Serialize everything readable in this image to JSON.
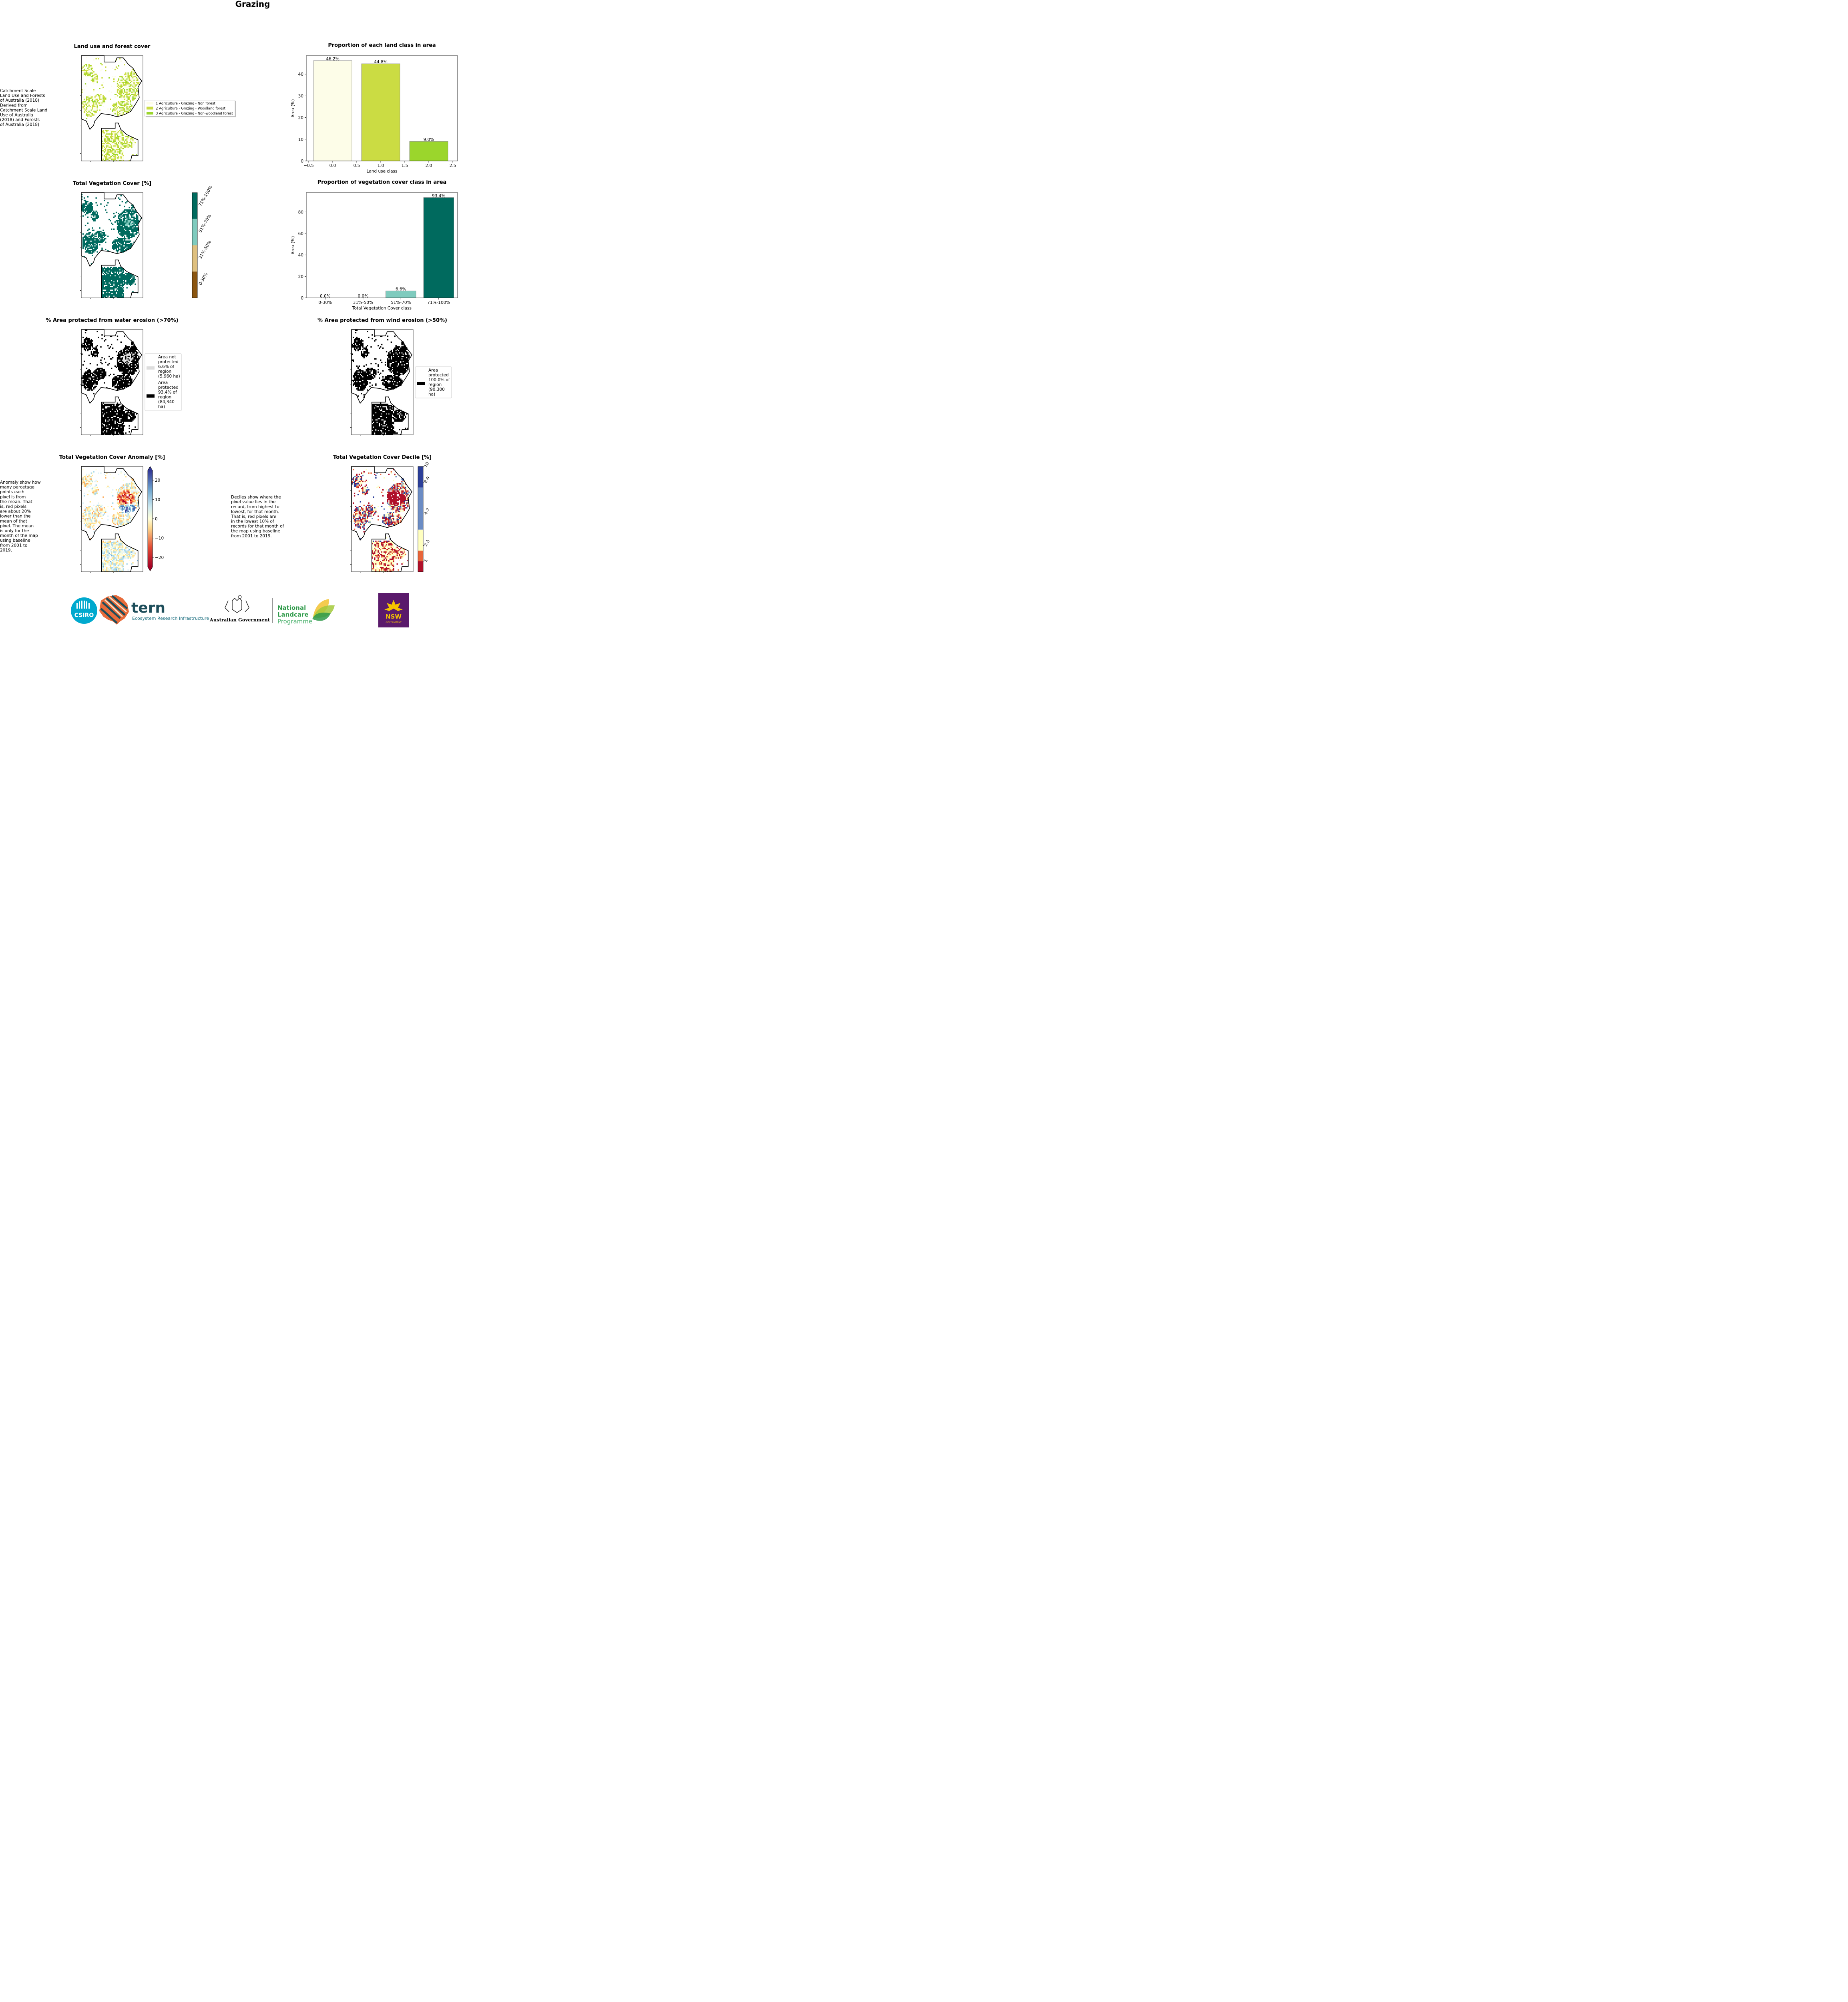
{
  "page": {
    "title": "Grazing"
  },
  "landuse_map": {
    "title": "Land use and forest cover",
    "note": [
      " Catchment Scale",
      "Land Use and Forests",
      "of Australia (2018)",
      "Derived from",
      "Catchment Scale Land",
      "Use of Australia",
      "(2018) and Forests",
      "of Australia (2018)"
    ],
    "legend": [
      {
        "label": "1 Agriculture - Grazing - Non forest",
        "color": "#fdfde8"
      },
      {
        "label": "2 Agriculture - Grazing - Woodland forest",
        "color": "#cbdc43"
      },
      {
        "label": "3 Agriculture - Grazing - Non-woodland forest",
        "color": "#9bd62c"
      }
    ]
  },
  "veg_map": {
    "title": "Total Vegetation Cover [%]",
    "classes": [
      {
        "label": "71%-100%",
        "color": "#006a5e"
      },
      {
        "label": "51%-70%",
        "color": "#7fcbbe"
      },
      {
        "label": "31%-50%",
        "color": "#dfc07f"
      },
      {
        "label": "0-30%",
        "color": "#8a5510"
      }
    ]
  },
  "water_map": {
    "title": "% Area protected from water erosion (>70%)",
    "legend": [
      {
        "lines": [
          "Area not",
          "protected",
          "6.6% of",
          "region",
          "(5,960 ha)"
        ],
        "color": "#dddddd"
      },
      {
        "lines": [
          "Area",
          "protected",
          "93.4% of",
          "region",
          "(84,340",
          "ha)"
        ],
        "color": "#000000"
      }
    ]
  },
  "wind_map": {
    "title": "% Area protected from wind erosion (>50%)",
    "legend": [
      {
        "lines": [
          "Area",
          "protected",
          "100.0% of",
          "region",
          "(90,300",
          "ha)"
        ],
        "color": "#000000"
      }
    ]
  },
  "anomaly_map": {
    "title": "Total Vegetation Cover Anomaly [%]",
    "note": [
      "Anomaly show how",
      "many percetage",
      "points each",
      "pixel is from",
      "the mean. That",
      "is, red pixels",
      "are about 20%",
      "lower than the",
      "mean of that",
      "pixel. The mean",
      "is only for the",
      "month of the map",
      "using baseline",
      "from 2001 to",
      "2019."
    ],
    "colorbar_ticks": [
      "20",
      "10",
      "0",
      "−10",
      "−20"
    ]
  },
  "decile_map": {
    "title": "Total Vegetation Cover Decile [%]",
    "note": [
      "Deciles show where the",
      "pixel value lies in the",
      "record, from highest to",
      "lowest, for that month.",
      "That is, red pixels are",
      "in the lowest 10% of",
      "records for that month of",
      "the map using baseline",
      "from 2001 to 2019."
    ],
    "classes": [
      {
        "label": "10",
        "color": "#2c3f99"
      },
      {
        "label": "8-9",
        "color": "#6b8cc4"
      },
      {
        "label": "4-7",
        "color": "#ffffc0"
      },
      {
        "label": "2-3",
        "color": "#e8653a"
      },
      {
        "label": "1",
        "color": "#b0102a"
      }
    ]
  },
  "chart_data": [
    {
      "type": "bar",
      "title": "Proportion of each land class in area",
      "xlabel": "Land use class",
      "ylabel": "Area (%)",
      "x": [
        0,
        1,
        2
      ],
      "values": [
        46.2,
        44.8,
        9.0
      ],
      "bar_labels": [
        "46.2%",
        "44.8%",
        "9.0%"
      ],
      "colors": [
        "#fdfde8",
        "#cbdc43",
        "#9bd62c"
      ],
      "xlim": [
        -0.55,
        2.6
      ],
      "ylim": [
        0,
        48.5
      ],
      "xticks": [
        "−0.5",
        "0.0",
        "0.5",
        "1.0",
        "1.5",
        "2.0",
        "2.5"
      ],
      "xtick_values": [
        -0.5,
        0,
        0.5,
        1,
        1.5,
        2,
        2.5
      ],
      "yticks": [
        "0",
        "10",
        "20",
        "30",
        "40"
      ],
      "ytick_values": [
        0,
        10,
        20,
        30,
        40
      ]
    },
    {
      "type": "bar",
      "title": "Proportion of vegetation cover class in area",
      "xlabel": "Total Vegetation Cover class",
      "ylabel": "Area (%)",
      "categories": [
        "0-30%",
        "31%-50%",
        "51%-70%",
        "71%-100%"
      ],
      "values": [
        0.0,
        0.0,
        6.6,
        93.4
      ],
      "bar_labels": [
        "0.0%",
        "0.0%",
        "6.6%",
        "93.4%"
      ],
      "colors": [
        "#8a5510",
        "#dfc07f",
        "#7fcbbe",
        "#006a5e"
      ],
      "ylim": [
        0,
        98
      ],
      "yticks": [
        "0",
        "20",
        "40",
        "60",
        "80"
      ],
      "ytick_values": [
        0,
        20,
        40,
        60,
        80
      ]
    }
  ],
  "logos": {
    "csiro": "CSIRO",
    "tern": "tern",
    "tern_sub": "Ecosystem Research Infrastructure",
    "aus_gov": "Australian Government",
    "nlp": [
      "National",
      "Landcare",
      "Programme"
    ],
    "nsw": "NSW",
    "nsw_sub": "GOVERNMENT"
  }
}
